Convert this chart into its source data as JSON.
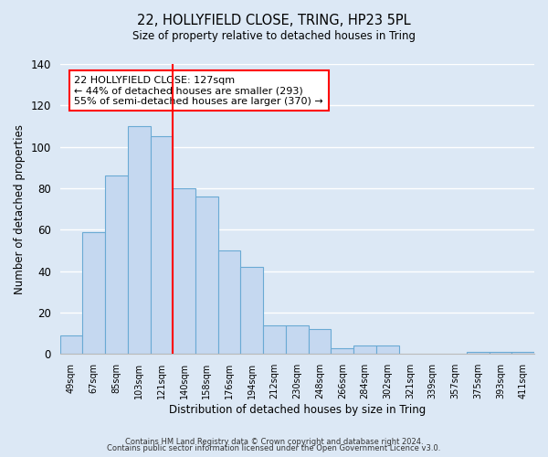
{
  "title": "22, HOLLYFIELD CLOSE, TRING, HP23 5PL",
  "subtitle": "Size of property relative to detached houses in Tring",
  "xlabel": "Distribution of detached houses by size in Tring",
  "ylabel": "Number of detached properties",
  "bar_labels": [
    "49sqm",
    "67sqm",
    "85sqm",
    "103sqm",
    "121sqm",
    "140sqm",
    "158sqm",
    "176sqm",
    "194sqm",
    "212sqm",
    "230sqm",
    "248sqm",
    "266sqm",
    "284sqm",
    "302sqm",
    "321sqm",
    "339sqm",
    "357sqm",
    "375sqm",
    "393sqm",
    "411sqm"
  ],
  "bar_values": [
    9,
    59,
    86,
    110,
    105,
    80,
    76,
    50,
    42,
    14,
    14,
    12,
    3,
    4,
    4,
    0,
    0,
    0,
    1,
    1,
    1
  ],
  "bar_color": "#c5d8f0",
  "bar_edge_color": "#6aaad4",
  "background_color": "#dce8f5",
  "grid_color": "#ffffff",
  "vline_x_index": 4.5,
  "vline_color": "red",
  "annotation_text": "22 HOLLYFIELD CLOSE: 127sqm\n← 44% of detached houses are smaller (293)\n55% of semi-detached houses are larger (370) →",
  "annotation_box_color": "white",
  "annotation_box_edge": "red",
  "ylim": [
    0,
    140
  ],
  "yticks": [
    0,
    20,
    40,
    60,
    80,
    100,
    120,
    140
  ],
  "footer_line1": "Contains HM Land Registry data © Crown copyright and database right 2024.",
  "footer_line2": "Contains public sector information licensed under the Open Government Licence v3.0."
}
